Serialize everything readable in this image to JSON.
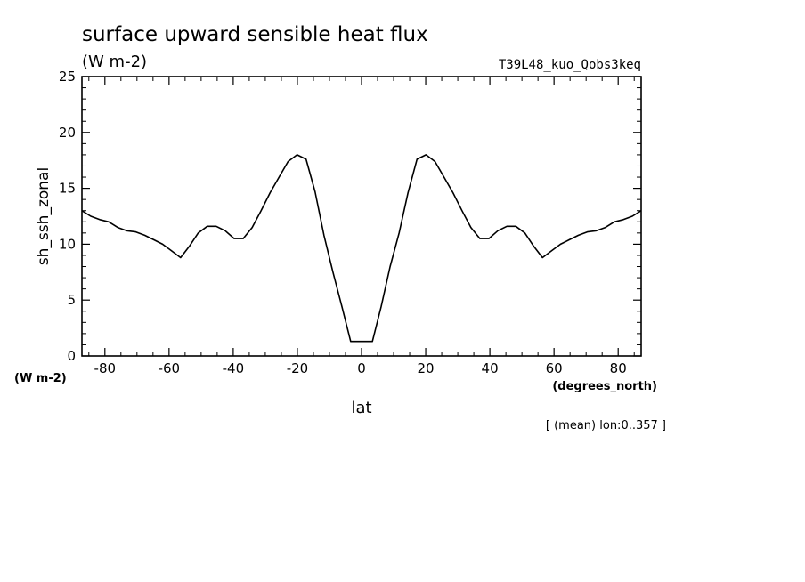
{
  "chart_data": {
    "type": "line",
    "title": "surface upward sensible heat flux",
    "units": "(W m-2)",
    "experiment": "T39L48_kuo_Qobs3keq",
    "ylabel": "sh_ssh_zonal",
    "yunits": "(W m-2)",
    "xlabel": "lat",
    "xunits": "(degrees_north)",
    "footnote": "[ (mean) lon:0..357 ]",
    "xlim": [
      -87.16,
      87.16
    ],
    "ylim": [
      0,
      25
    ],
    "xticks": [
      -80,
      -60,
      -40,
      -20,
      0,
      20,
      40,
      60,
      80
    ],
    "xtick_labels": [
      "-80",
      "-60",
      "-40",
      "-20",
      "0",
      "20",
      "40",
      "60",
      "80"
    ],
    "yticks": [
      0,
      5,
      10,
      15,
      20,
      25
    ],
    "ytick_labels": [
      "0",
      "5",
      "10",
      "15",
      "20",
      "25"
    ],
    "grid": false,
    "series": [
      {
        "x": [
          -87.2,
          -84.4,
          -81.6,
          -78.8,
          -76.0,
          -73.2,
          -70.4,
          -67.6,
          -64.8,
          -62.0,
          -59.2,
          -56.4,
          -53.7,
          -50.9,
          -48.1,
          -45.3,
          -42.5,
          -39.7,
          -36.9,
          -34.1,
          -31.3,
          -28.5,
          -25.7,
          -22.9,
          -20.1,
          -17.3,
          -14.5,
          -11.7,
          -8.9,
          -6.1,
          -3.4,
          -0.6,
          0.6,
          3.4,
          6.1,
          8.9,
          11.7,
          14.5,
          17.3,
          20.1,
          22.9,
          25.7,
          28.5,
          31.3,
          34.1,
          36.9,
          39.7,
          42.5,
          45.3,
          48.1,
          50.9,
          53.7,
          56.4,
          59.2,
          62.0,
          64.8,
          67.6,
          70.4,
          73.2,
          76.0,
          78.8,
          81.6,
          84.4,
          87.2
        ],
        "y": [
          13.0,
          12.5,
          12.2,
          12.0,
          11.5,
          11.2,
          11.1,
          10.8,
          10.4,
          10.0,
          9.4,
          8.8,
          9.8,
          11.0,
          11.6,
          11.6,
          11.2,
          10.5,
          10.5,
          11.5,
          13.0,
          14.6,
          16.0,
          17.4,
          18.0,
          17.6,
          14.7,
          10.8,
          7.5,
          4.4,
          1.3,
          1.3,
          1.3,
          1.3,
          4.4,
          8.0,
          11.0,
          14.6,
          17.6,
          18.0,
          17.4,
          16.0,
          14.6,
          13.0,
          11.5,
          10.5,
          10.5,
          11.2,
          11.6,
          11.6,
          11.0,
          9.8,
          8.8,
          9.4,
          10.0,
          10.4,
          10.8,
          11.1,
          11.2,
          11.5,
          12.0,
          12.2,
          12.5,
          13.0
        ]
      }
    ]
  }
}
